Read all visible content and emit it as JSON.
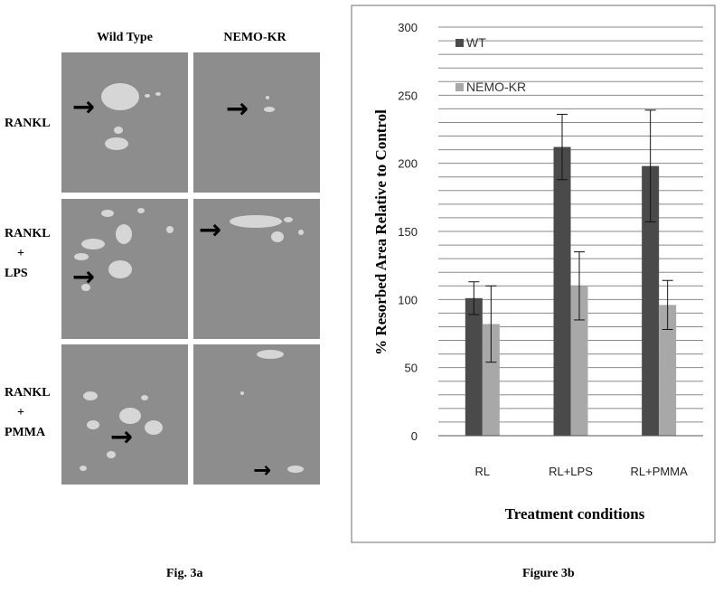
{
  "fig3a": {
    "columns": [
      "Wild Type",
      "NEMO-KR"
    ],
    "rows": [
      {
        "lines": [
          "RANKL"
        ]
      },
      {
        "lines": [
          "RANKL",
          "+",
          "LPS"
        ]
      },
      {
        "lines": [
          "RANKL",
          "+",
          "PMMA"
        ]
      }
    ],
    "caption": "Fig. 3a"
  },
  "fig3b": {
    "caption": "Figure 3b"
  },
  "chart_data": {
    "type": "bar",
    "categories": [
      "RL",
      "RL+LPS",
      "RL+PMMA"
    ],
    "series": [
      {
        "name": "WT",
        "color": "#4a4a4a",
        "values": [
          101,
          212,
          198
        ],
        "errors": [
          12,
          24,
          41
        ]
      },
      {
        "name": "NEMO-KR",
        "color": "#a8a8a8",
        "values": [
          82,
          110,
          96
        ],
        "errors": [
          28,
          25,
          18
        ]
      }
    ],
    "ylabel": "% Resorbed Area Relative to Control",
    "xlabel": "Treatment conditions",
    "ylim": [
      0,
      300
    ],
    "yticks": [
      0,
      50,
      100,
      150,
      200,
      250,
      300
    ],
    "grid": true,
    "legend": "top-left"
  }
}
